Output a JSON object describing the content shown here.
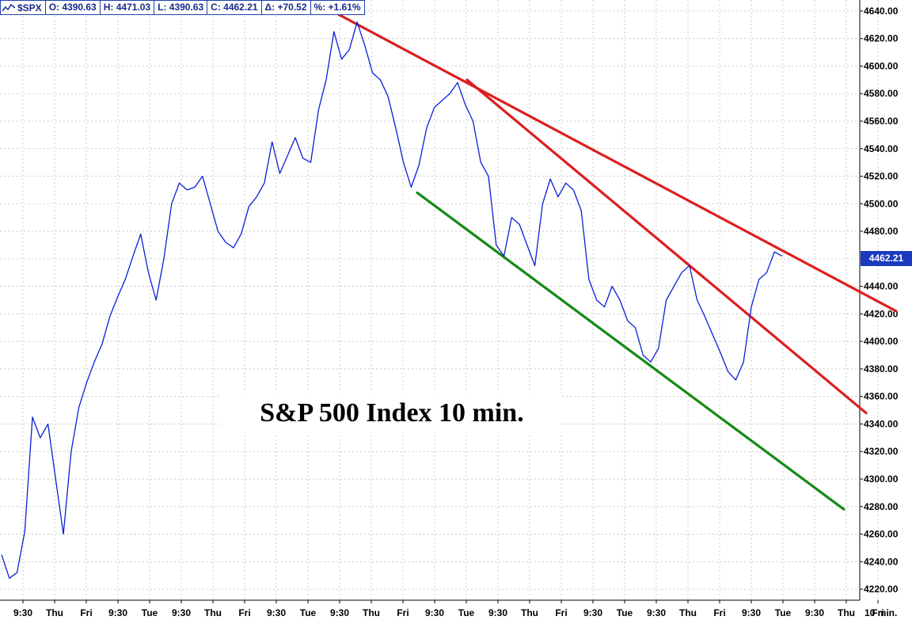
{
  "header": {
    "symbol": "$SPX",
    "open": "O: 4390.63",
    "high": "H: 4471.03",
    "low": "L: 4390.63",
    "close": "C: 4462.21",
    "change": "Δ: +70.52",
    "percent": "%: +1.61%"
  },
  "price_tag": "4462.21",
  "label_text": "S&P 500 Index 10 min.",
  "chart_data": {
    "type": "line",
    "title": "S&P 500 Index 10 min.",
    "xlabel": "",
    "ylabel": "",
    "ylim": [
      4212,
      4648
    ],
    "y_ticks": [
      "4220.00",
      "4240.00",
      "4260.00",
      "4280.00",
      "4300.00",
      "4320.00",
      "4340.00",
      "4360.00",
      "4380.00",
      "4400.00",
      "4420.00",
      "4440.00",
      "4460.00",
      "4480.00",
      "4500.00",
      "4520.00",
      "4540.00",
      "4560.00",
      "4580.00",
      "4600.00",
      "4620.00",
      "4640.00"
    ],
    "x_ticks": [
      "9:30",
      "Thu",
      "Fri",
      "9:30",
      "Tue",
      "9:30",
      "Thu",
      "Fri",
      "9:30",
      "Tue",
      "9:30",
      "Thu",
      "Fri",
      "9:30",
      "Tue",
      "9:30",
      "Thu",
      "Fri",
      "9:30",
      "Tue",
      "9:30",
      "Thu",
      "Fri",
      "9:30",
      "Tue",
      "9:30",
      "Thu",
      "Fri"
    ],
    "x_unit": "10 min.",
    "grid": true,
    "last_value": 4462.21,
    "series": [
      {
        "color": "#0a1fd6",
        "values": [
          4245,
          4228,
          4232,
          4262,
          4345,
          4330,
          4340,
          4300,
          4260,
          4320,
          4352,
          4370,
          4385,
          4398,
          4418,
          4432,
          4445,
          4462,
          4478,
          4450,
          4430,
          4460,
          4500,
          4515,
          4510,
          4512,
          4520,
          4500,
          4480,
          4472,
          4468,
          4478,
          4498,
          4505,
          4515,
          4545,
          4522,
          4535,
          4548,
          4533,
          4530,
          4568,
          4590,
          4625,
          4605,
          4612,
          4632,
          4615,
          4595,
          4590,
          4578,
          4555,
          4530,
          4512,
          4528,
          4555,
          4570,
          4575,
          4580,
          4588,
          4572,
          4560,
          4530,
          4520,
          4470,
          4462,
          4490,
          4485,
          4470,
          4455,
          4500,
          4518,
          4505,
          4515,
          4510,
          4495,
          4445,
          4430,
          4425,
          4440,
          4430,
          4415,
          4410,
          4390,
          4385,
          4395,
          4430,
          4440,
          4450,
          4455,
          4430,
          4418,
          4405,
          4392,
          4378,
          4372,
          4385,
          4425,
          4445,
          4450,
          4465,
          4462
        ]
      }
    ],
    "trendlines": [
      {
        "color": "#dd1f1f",
        "from": [
          426,
          4638
        ],
        "to": [
          1132,
          4422
        ]
      },
      {
        "color": "#dd1f1f",
        "from": [
          590,
          4590
        ],
        "to": [
          1094,
          4348
        ]
      },
      {
        "color": "#158a15",
        "from": [
          527,
          4508
        ],
        "to": [
          1066,
          4278
        ]
      }
    ]
  }
}
